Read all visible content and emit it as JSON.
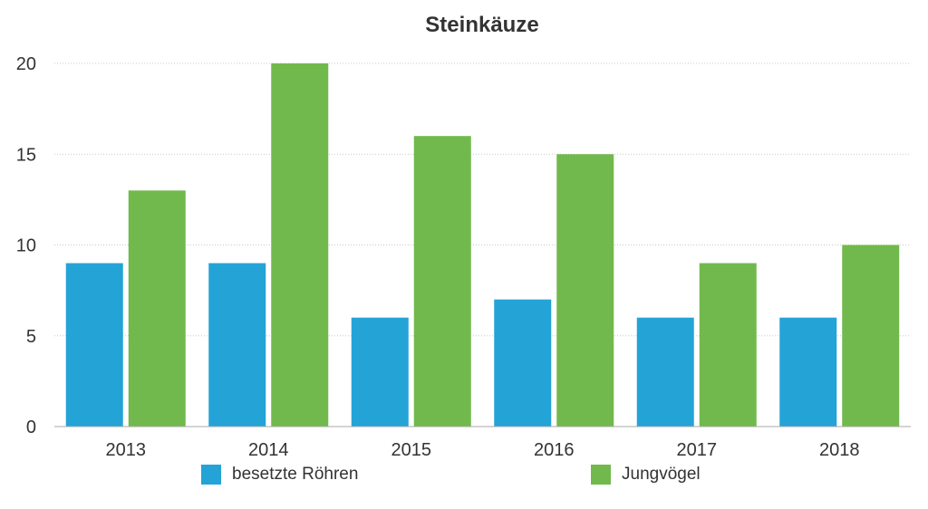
{
  "chart_data": {
    "type": "bar",
    "title": "Steinkäuze",
    "categories": [
      "2013",
      "2014",
      "2015",
      "2016",
      "2017",
      "2018"
    ],
    "series": [
      {
        "name": "besetzte Röhren",
        "color": "#24a3d7",
        "values": [
          9,
          9,
          6,
          7,
          6,
          6
        ]
      },
      {
        "name": "Jungvögel",
        "color": "#71b94c",
        "values": [
          13,
          20,
          16,
          15,
          9,
          10
        ]
      }
    ],
    "ylim": [
      0,
      20
    ],
    "yticks": [
      "0",
      "5",
      "10",
      "15",
      "20"
    ],
    "grid": true,
    "legend": "bottom"
  }
}
